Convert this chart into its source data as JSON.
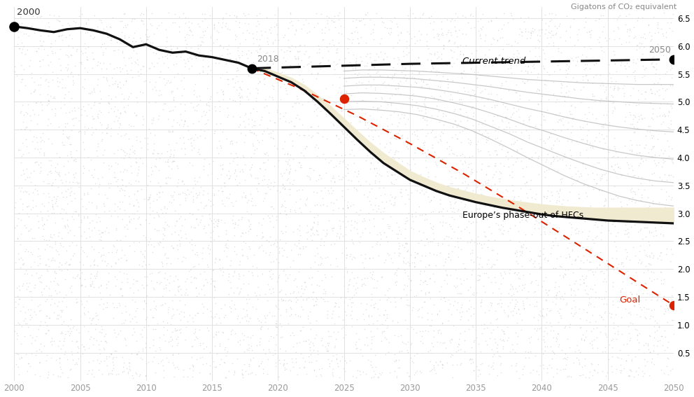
{
  "title": "Gigatons of CO₂ equivalent",
  "xlim": [
    2000,
    2050
  ],
  "ylim": [
    0,
    6.7
  ],
  "yticks": [
    0.5,
    1.0,
    1.5,
    2.0,
    2.5,
    3.0,
    3.5,
    4.0,
    4.5,
    5.0,
    5.5,
    6.0,
    6.5
  ],
  "xticks": [
    2000,
    2005,
    2010,
    2015,
    2020,
    2025,
    2030,
    2035,
    2040,
    2045,
    2050
  ],
  "main_line_color": "#111111",
  "dashed_line_color": "#111111",
  "red_dot_color": "#dd2200",
  "red_dashed_color": "#dd2200",
  "yellow_fill": "#f0ead0",
  "gray_lines_color": "#bbbbbb",
  "main_line_x": [
    2000,
    2001,
    2002,
    2003,
    2004,
    2005,
    2006,
    2007,
    2008,
    2009,
    2010,
    2011,
    2012,
    2013,
    2014,
    2015,
    2016,
    2017,
    2018,
    2019,
    2020,
    2021,
    2022,
    2023,
    2024,
    2025,
    2026,
    2027,
    2028,
    2029,
    2030,
    2031,
    2032,
    2033,
    2034,
    2035,
    2036,
    2037,
    2038,
    2039,
    2040,
    2041,
    2042,
    2043,
    2044,
    2045,
    2046,
    2047,
    2048,
    2049,
    2050
  ],
  "main_line_y": [
    6.35,
    6.32,
    6.28,
    6.25,
    6.3,
    6.32,
    6.28,
    6.22,
    6.12,
    5.98,
    6.03,
    5.93,
    5.88,
    5.9,
    5.83,
    5.8,
    5.75,
    5.7,
    5.6,
    5.55,
    5.45,
    5.35,
    5.2,
    5.0,
    4.78,
    4.55,
    4.32,
    4.1,
    3.9,
    3.75,
    3.6,
    3.5,
    3.4,
    3.32,
    3.26,
    3.2,
    3.15,
    3.1,
    3.06,
    3.02,
    2.98,
    2.95,
    2.93,
    2.91,
    2.89,
    2.87,
    2.86,
    2.85,
    2.84,
    2.83,
    2.82
  ],
  "dashed_line_x": [
    2018,
    2030,
    2040,
    2050
  ],
  "dashed_line_y": [
    5.6,
    5.68,
    5.72,
    5.76
  ],
  "red_dashed_x": [
    2018,
    2022,
    2026,
    2030,
    2034,
    2038,
    2042,
    2046,
    2050
  ],
  "red_dashed_y": [
    5.6,
    5.2,
    4.75,
    4.25,
    3.72,
    3.15,
    2.55,
    1.95,
    1.35
  ],
  "red_dot_1": [
    2025,
    5.05
  ],
  "red_dot_goal": [
    2050,
    1.35
  ],
  "yellow_fill_x": [
    2018,
    2019,
    2020,
    2021,
    2022,
    2023,
    2024,
    2025,
    2026,
    2027,
    2028,
    2029,
    2030,
    2031,
    2032,
    2033,
    2034,
    2035,
    2036,
    2037,
    2038,
    2039,
    2040,
    2041,
    2042,
    2043,
    2044,
    2045,
    2046,
    2047,
    2048,
    2049,
    2050
  ],
  "yellow_fill_lower": [
    5.6,
    5.55,
    5.45,
    5.35,
    5.2,
    5.0,
    4.78,
    4.55,
    4.32,
    4.1,
    3.9,
    3.75,
    3.6,
    3.5,
    3.4,
    3.32,
    3.26,
    3.2,
    3.15,
    3.1,
    3.06,
    3.02,
    2.98,
    2.95,
    2.93,
    2.91,
    2.89,
    2.87,
    2.86,
    2.85,
    2.84,
    2.83,
    2.82
  ],
  "yellow_fill_upper": [
    5.6,
    5.6,
    5.52,
    5.43,
    5.3,
    5.12,
    4.92,
    4.7,
    4.48,
    4.27,
    4.08,
    3.92,
    3.76,
    3.65,
    3.55,
    3.47,
    3.41,
    3.35,
    3.3,
    3.26,
    3.22,
    3.19,
    3.16,
    3.14,
    3.12,
    3.11,
    3.1,
    3.1,
    3.1,
    3.1,
    3.1,
    3.1,
    3.1
  ],
  "gray_line_sets_y": [
    [
      5.55,
      5.57,
      5.57,
      5.56,
      5.55,
      5.53,
      5.51,
      5.49,
      5.46,
      5.43,
      5.4,
      5.38,
      5.36,
      5.34,
      5.33,
      5.32,
      5.31,
      5.31,
      5.31
    ],
    [
      5.42,
      5.44,
      5.44,
      5.43,
      5.41,
      5.38,
      5.35,
      5.31,
      5.27,
      5.22,
      5.17,
      5.13,
      5.09,
      5.05,
      5.02,
      5.0,
      4.98,
      4.97,
      4.96
    ],
    [
      5.28,
      5.3,
      5.3,
      5.28,
      5.26,
      5.22,
      5.17,
      5.11,
      5.04,
      4.96,
      4.88,
      4.81,
      4.73,
      4.66,
      4.6,
      4.55,
      4.51,
      4.48,
      4.46
    ],
    [
      5.14,
      5.16,
      5.15,
      5.13,
      5.1,
      5.05,
      4.98,
      4.9,
      4.8,
      4.69,
      4.57,
      4.47,
      4.36,
      4.26,
      4.17,
      4.1,
      4.04,
      4.0,
      3.97
    ],
    [
      5.0,
      5.01,
      5.0,
      4.97,
      4.93,
      4.87,
      4.79,
      4.69,
      4.56,
      4.43,
      4.28,
      4.15,
      4.02,
      3.9,
      3.79,
      3.7,
      3.63,
      3.58,
      3.55
    ],
    [
      4.86,
      4.87,
      4.85,
      4.82,
      4.77,
      4.69,
      4.6,
      4.48,
      4.33,
      4.17,
      4.0,
      3.84,
      3.68,
      3.54,
      3.42,
      3.31,
      3.23,
      3.17,
      3.13
    ]
  ],
  "gray_line_x_start": 2025,
  "gray_line_x_end": 2050,
  "gray_line_n": 19
}
